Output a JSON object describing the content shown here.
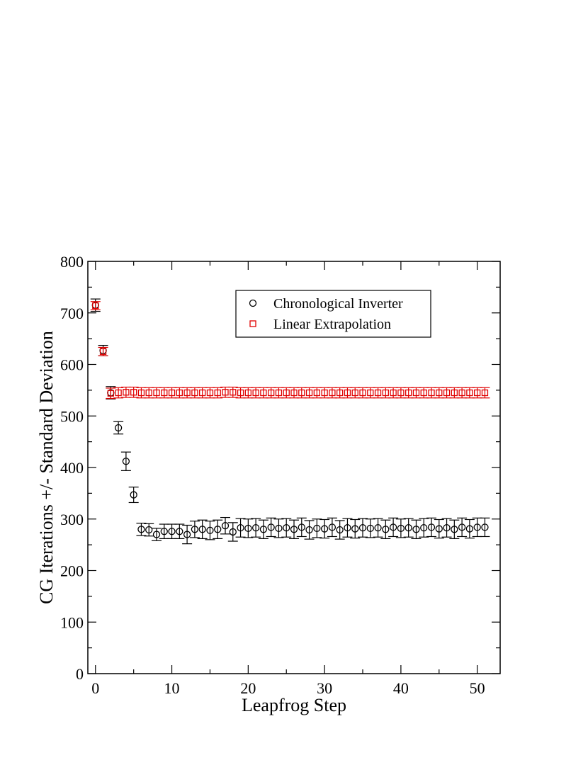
{
  "chart_data": {
    "type": "scatter",
    "title": "",
    "xlabel": "Leapfrog Step",
    "ylabel": "CG Iterations +/- Standard Deviation",
    "xlim": [
      -1,
      53
    ],
    "ylim": [
      0,
      800
    ],
    "x_major_ticks": [
      0,
      10,
      20,
      30,
      40,
      50
    ],
    "x_minor_step": 5,
    "y_major_ticks": [
      0,
      100,
      200,
      300,
      400,
      500,
      600,
      700,
      800
    ],
    "y_minor_step": 50,
    "x_tick_labels": [
      "0",
      "10",
      "20",
      "30",
      "40",
      "50"
    ],
    "y_tick_labels": [
      "0",
      "100",
      "200",
      "300",
      "400",
      "500",
      "600",
      "700",
      "800"
    ],
    "grid": false,
    "legend_position": "top-right",
    "series": [
      {
        "name": "Chronological Inverter",
        "marker": "circle",
        "color": "#000000",
        "x": [
          0,
          1,
          2,
          3,
          4,
          5,
          6,
          7,
          8,
          9,
          10,
          11,
          12,
          13,
          14,
          15,
          16,
          17,
          18,
          19,
          20,
          21,
          22,
          23,
          24,
          25,
          26,
          27,
          28,
          29,
          30,
          31,
          32,
          33,
          34,
          35,
          36,
          37,
          38,
          39,
          40,
          41,
          42,
          43,
          44,
          45,
          46,
          47,
          48,
          49,
          50,
          51
        ],
        "y": [
          715,
          627,
          545,
          477,
          412,
          347,
          280,
          279,
          270,
          276,
          276,
          276,
          270,
          280,
          280,
          278,
          280,
          287,
          275,
          283,
          282,
          283,
          280,
          284,
          282,
          283,
          280,
          284,
          279,
          282,
          281,
          284,
          279,
          283,
          281,
          283,
          282,
          283,
          280,
          284,
          282,
          283,
          280,
          283,
          284,
          281,
          283,
          280,
          284,
          281,
          284,
          284
        ],
        "err": [
          12,
          10,
          12,
          12,
          18,
          15,
          12,
          12,
          12,
          14,
          14,
          14,
          18,
          16,
          18,
          18,
          18,
          16,
          18,
          18,
          18,
          18,
          18,
          18,
          18,
          18,
          18,
          18,
          18,
          18,
          18,
          18,
          18,
          18,
          18,
          18,
          18,
          18,
          18,
          18,
          18,
          18,
          18,
          18,
          18,
          18,
          18,
          18,
          18,
          18,
          18,
          18
        ]
      },
      {
        "name": "Linear Extrapolation",
        "marker": "square",
        "color": "#e00000",
        "x": [
          0,
          1,
          2,
          3,
          4,
          5,
          6,
          7,
          8,
          9,
          10,
          11,
          12,
          13,
          14,
          15,
          16,
          17,
          18,
          19,
          20,
          21,
          22,
          23,
          24,
          25,
          26,
          27,
          28,
          29,
          30,
          31,
          32,
          33,
          34,
          35,
          36,
          37,
          38,
          39,
          40,
          41,
          42,
          43,
          44,
          45,
          46,
          47,
          48,
          49,
          50,
          51
        ],
        "y": [
          714,
          625,
          544,
          545,
          546,
          546,
          545,
          545,
          545,
          545,
          545,
          545,
          545,
          545,
          545,
          545,
          545,
          546,
          546,
          545,
          545,
          545,
          545,
          545,
          545,
          545,
          545,
          545,
          545,
          545,
          545,
          545,
          545,
          545,
          545,
          545,
          545,
          545,
          545,
          545,
          545,
          545,
          545,
          545,
          545,
          545,
          545,
          545,
          545,
          545,
          545,
          545
        ],
        "err": [
          8,
          8,
          10,
          10,
          10,
          10,
          10,
          10,
          10,
          10,
          10,
          10,
          10,
          10,
          10,
          10,
          10,
          10,
          10,
          10,
          10,
          10,
          10,
          10,
          10,
          10,
          10,
          10,
          10,
          10,
          10,
          10,
          10,
          10,
          10,
          10,
          10,
          10,
          10,
          10,
          10,
          10,
          10,
          10,
          10,
          10,
          10,
          10,
          10,
          10,
          10,
          10
        ]
      }
    ]
  }
}
